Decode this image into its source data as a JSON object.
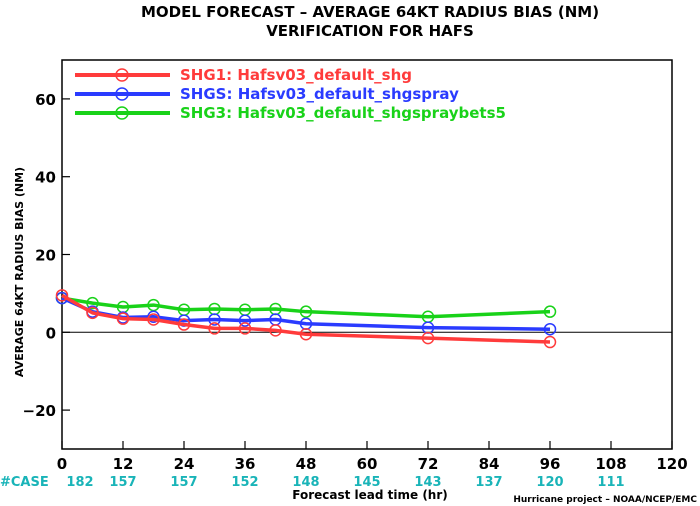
{
  "chart_data": {
    "type": "line",
    "title": "MODEL FORECAST – AVERAGE 64KT RADIUS BIAS (NM)",
    "subtitle": "VERIFICATION FOR HAFS",
    "xlabel": "Forecast lead time (hr)",
    "ylabel": "AVERAGE 64KT RADIUS BIAS (NM)",
    "xlim": [
      0,
      120
    ],
    "ylim": [
      -30,
      70
    ],
    "x_ticks": [
      0,
      12,
      24,
      36,
      48,
      60,
      72,
      84,
      96,
      108,
      120
    ],
    "y_ticks": [
      -20,
      0,
      20,
      40,
      60
    ],
    "zero_line": true,
    "grid": false,
    "legend_position": "top-left",
    "series": [
      {
        "name": "SHG1: Hafsv03_default_shg",
        "color": "#ff3b3b",
        "x": [
          0,
          6,
          12,
          18,
          24,
          30,
          36,
          42,
          48,
          72,
          96
        ],
        "y": [
          9.5,
          5.0,
          3.5,
          3.3,
          2.0,
          1.0,
          1.0,
          0.5,
          -0.5,
          -1.5,
          -2.5
        ]
      },
      {
        "name": "SHGS: Hafsv03_default_shgspray",
        "color": "#2a3bff",
        "x": [
          0,
          6,
          12,
          18,
          24,
          30,
          36,
          42,
          48,
          72,
          96
        ],
        "y": [
          8.8,
          5.3,
          3.8,
          4.0,
          3.0,
          3.3,
          3.0,
          3.3,
          2.2,
          1.2,
          0.8
        ]
      },
      {
        "name": "SHG3: Hafsv03_default_shgspraybets5",
        "color": "#19d219",
        "x": [
          0,
          6,
          12,
          18,
          24,
          30,
          36,
          42,
          48,
          72,
          96
        ],
        "y": [
          8.8,
          7.5,
          6.5,
          7.0,
          5.8,
          6.0,
          5.8,
          6.0,
          5.3,
          4.0,
          5.3
        ]
      }
    ],
    "case_counts": {
      "label": "#CASE",
      "x": [
        0,
        12,
        24,
        36,
        48,
        60,
        72,
        84,
        96,
        108
      ],
      "values": [
        "182",
        "157",
        "157",
        "152",
        "148",
        "145",
        "143",
        "137",
        "120",
        "111"
      ],
      "color": "#19b4b8"
    },
    "credit": "Hurricane project – NOAA/NCEP/EMC"
  }
}
